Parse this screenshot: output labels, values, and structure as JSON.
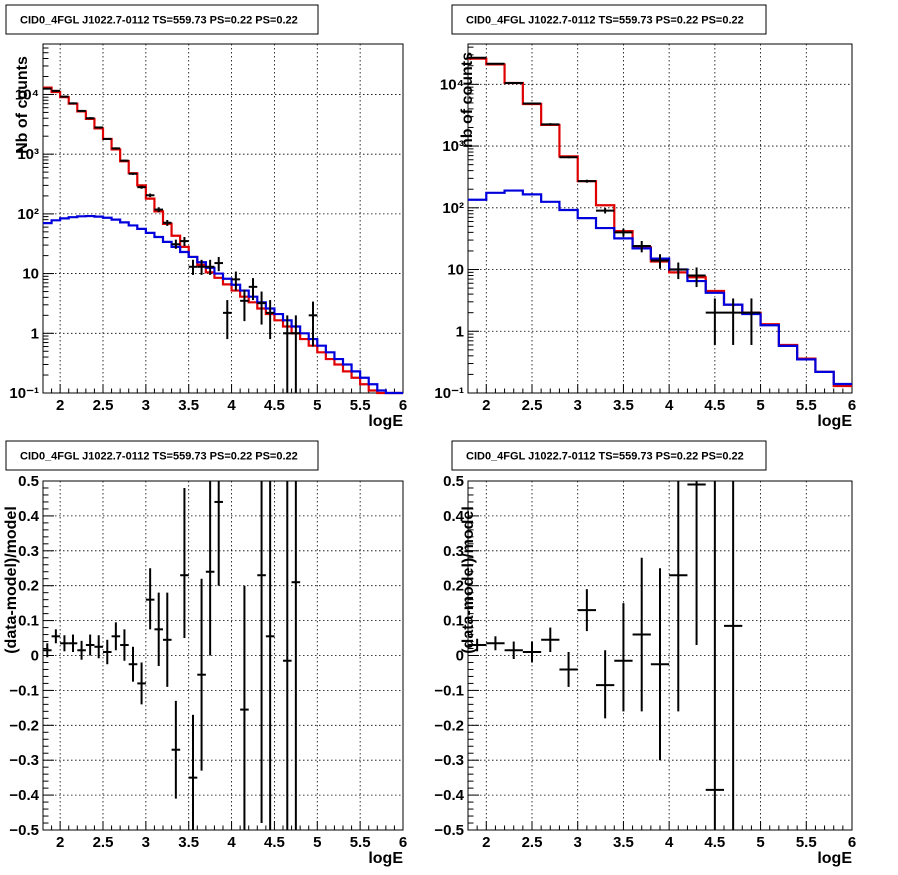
{
  "chart_data": [
    {
      "type": "line",
      "title": "CID0_4FGL J1022.7-0112 TS=559.73 PS=0.22 PS=0.22",
      "xlabel": "logE",
      "ylabel": "Nb of counts",
      "xlim": [
        1.8,
        6
      ],
      "ylim": [
        0.1,
        70000
      ],
      "yscale": "log",
      "grid": true,
      "x_ticks": [
        "2",
        "2.5",
        "3",
        "3.5",
        "4",
        "4.5",
        "5",
        "5.5",
        "6"
      ],
      "y_ticks": [
        "10⁻¹",
        "1",
        "10",
        "10²",
        "10³",
        "10⁴"
      ],
      "bin_edges": [
        1.8,
        1.9,
        2.0,
        2.1,
        2.2,
        2.3,
        2.4,
        2.5,
        2.6,
        2.7,
        2.8,
        2.9,
        3.0,
        3.1,
        3.2,
        3.3,
        3.4,
        3.5,
        3.6,
        3.7,
        3.8,
        3.9,
        4.0,
        4.1,
        4.2,
        4.3,
        4.4,
        4.5,
        4.6,
        4.7,
        4.8,
        4.9,
        5.0,
        5.1,
        5.2,
        5.3,
        5.4,
        5.5,
        5.6,
        5.7,
        5.8,
        5.9,
        6.0
      ],
      "series": [
        {
          "color": "#e00000",
          "values": [
            13000,
            11000,
            9000,
            7000,
            5200,
            3900,
            2700,
            1800,
            1200,
            760,
            480,
            300,
            180,
            110,
            68,
            43,
            28,
            19,
            14,
            10.5,
            8.5,
            6.6,
            5.2,
            4.1,
            3.3,
            2.6,
            2.1,
            1.65,
            1.3,
            1.0,
            0.8,
            0.62,
            0.48,
            0.37,
            0.3,
            0.23,
            0.18,
            0.14,
            0.11,
            0.09,
            0.08,
            0.07
          ]
        },
        {
          "color": "#0000dd",
          "values": [
            70,
            78,
            84,
            88,
            91,
            92,
            90,
            86,
            80,
            72,
            64,
            56,
            48,
            41,
            34,
            28,
            23,
            19,
            15.5,
            12.5,
            10,
            8.2,
            6.5,
            5.2,
            4.1,
            3.3,
            2.6,
            2.1,
            1.65,
            1.3,
            1.0,
            0.8,
            0.62,
            0.48,
            0.37,
            0.3,
            0.23,
            0.18,
            0.14,
            0.11,
            0.09,
            0.08
          ]
        }
      ],
      "points": [
        {
          "x": 1.85,
          "y": 12500,
          "lo": 12100,
          "hi": 12900
        },
        {
          "x": 1.95,
          "y": 11500,
          "lo": 11100,
          "hi": 11900
        },
        {
          "x": 2.05,
          "y": 9200,
          "lo": 8900,
          "hi": 9500
        },
        {
          "x": 2.15,
          "y": 7100,
          "lo": 6850,
          "hi": 7350
        },
        {
          "x": 2.25,
          "y": 5300,
          "lo": 5100,
          "hi": 5500
        },
        {
          "x": 2.35,
          "y": 4000,
          "lo": 3850,
          "hi": 4150
        },
        {
          "x": 2.45,
          "y": 2800,
          "lo": 2700,
          "hi": 2900
        },
        {
          "x": 2.55,
          "y": 1800,
          "lo": 1740,
          "hi": 1860
        },
        {
          "x": 2.65,
          "y": 1250,
          "lo": 1200,
          "hi": 1300
        },
        {
          "x": 2.75,
          "y": 780,
          "lo": 750,
          "hi": 810
        },
        {
          "x": 2.85,
          "y": 470,
          "lo": 450,
          "hi": 490
        },
        {
          "x": 2.95,
          "y": 280,
          "lo": 263,
          "hi": 297
        },
        {
          "x": 3.05,
          "y": 205,
          "lo": 191,
          "hi": 219
        },
        {
          "x": 3.15,
          "y": 118,
          "lo": 107,
          "hi": 129
        },
        {
          "x": 3.25,
          "y": 71,
          "lo": 63,
          "hi": 79
        },
        {
          "x": 3.35,
          "y": 31,
          "lo": 26,
          "hi": 37
        },
        {
          "x": 3.45,
          "y": 35,
          "lo": 29,
          "hi": 41
        },
        {
          "x": 3.55,
          "y": 13,
          "lo": 9.5,
          "hi": 17
        },
        {
          "x": 3.65,
          "y": 13,
          "lo": 9.5,
          "hi": 17
        },
        {
          "x": 3.75,
          "y": 13,
          "lo": 9.5,
          "hi": 17
        },
        {
          "x": 3.85,
          "y": 15,
          "lo": 11,
          "hi": 19
        },
        {
          "x": 3.95,
          "y": 2.2,
          "lo": 0.8,
          "hi": 3.6
        },
        {
          "x": 4.05,
          "y": 8,
          "lo": 5.2,
          "hi": 10.8
        },
        {
          "x": 4.15,
          "y": 3.5,
          "lo": 1.6,
          "hi": 5.4
        },
        {
          "x": 4.25,
          "y": 6,
          "lo": 3.6,
          "hi": 8.4
        },
        {
          "x": 4.35,
          "y": 3.2,
          "lo": 1.4,
          "hi": 5.0
        },
        {
          "x": 4.45,
          "y": 2.2,
          "lo": 0.8,
          "hi": 3.6
        },
        {
          "x": 4.65,
          "y": 1,
          "lo": 0.1,
          "hi": 2
        },
        {
          "x": 4.75,
          "y": 1,
          "lo": 0.1,
          "hi": 2
        },
        {
          "x": 4.95,
          "y": 2,
          "lo": 0.6,
          "hi": 3.4
        }
      ]
    },
    {
      "type": "line",
      "title": "CID0_4FGL J1022.7-0112 TS=559.73 PS=0.22 PS=0.22",
      "xlabel": "logE",
      "ylabel": "nb of counts",
      "xlim": [
        1.8,
        6
      ],
      "ylim": [
        0.1,
        45000
      ],
      "yscale": "log",
      "grid": true,
      "x_ticks": [
        "2",
        "2.5",
        "3",
        "3.5",
        "4",
        "4.5",
        "5",
        "5.5",
        "6"
      ],
      "y_ticks": [
        "10⁻¹",
        "1",
        "10",
        "10²",
        "10³",
        "10⁴"
      ],
      "bin_edges": [
        1.8,
        2.0,
        2.2,
        2.4,
        2.6,
        2.8,
        3.0,
        3.2,
        3.4,
        3.6,
        3.8,
        4.0,
        4.2,
        4.4,
        4.6,
        4.8,
        5.0,
        5.2,
        5.4,
        5.6,
        5.8,
        6.0
      ],
      "series": [
        {
          "color": "#e00000",
          "values": [
            26000,
            21000,
            10500,
            4800,
            2200,
            680,
            270,
            110,
            42,
            23,
            13.5,
            9,
            7.5,
            4.5,
            2.7,
            2.0,
            1.3,
            0.6,
            0.36,
            0.22,
            0.13
          ]
        },
        {
          "color": "#0000dd",
          "values": [
            135,
            175,
            190,
            165,
            125,
            92,
            68,
            47,
            32,
            22,
            15,
            10,
            6.5,
            4.2,
            2.7,
            1.9,
            1.25,
            0.58,
            0.35,
            0.22,
            0.14
          ]
        }
      ],
      "points": [
        {
          "x": 1.9,
          "y": 27000,
          "lo": 26500,
          "hi": 27500
        },
        {
          "x": 2.1,
          "y": 21500,
          "lo": 21100,
          "hi": 21900
        },
        {
          "x": 2.3,
          "y": 10500,
          "lo": 10200,
          "hi": 10800
        },
        {
          "x": 2.5,
          "y": 4900,
          "lo": 4750,
          "hi": 5050
        },
        {
          "x": 2.7,
          "y": 2250,
          "lo": 2150,
          "hi": 2350
        },
        {
          "x": 2.9,
          "y": 660,
          "lo": 635,
          "hi": 685
        },
        {
          "x": 3.1,
          "y": 270,
          "lo": 255,
          "hi": 285
        },
        {
          "x": 3.3,
          "y": 90,
          "lo": 81,
          "hi": 99
        },
        {
          "x": 3.5,
          "y": 40,
          "lo": 34,
          "hi": 46
        },
        {
          "x": 3.7,
          "y": 24,
          "lo": 19,
          "hi": 29
        },
        {
          "x": 3.9,
          "y": 14,
          "lo": 10.3,
          "hi": 17.7
        },
        {
          "x": 4.1,
          "y": 10,
          "lo": 7,
          "hi": 13
        },
        {
          "x": 4.3,
          "y": 8,
          "lo": 5.2,
          "hi": 10.8
        },
        {
          "x": 4.5,
          "y": 2,
          "lo": 0.6,
          "hi": 3.4
        },
        {
          "x": 4.7,
          "y": 2,
          "lo": 0.6,
          "hi": 3.4
        },
        {
          "x": 4.9,
          "y": 2,
          "lo": 0.6,
          "hi": 3.4
        }
      ]
    },
    {
      "type": "scatter",
      "title": "CID0_4FGL J1022.7-0112 TS=559.73 PS=0.22 PS=0.22",
      "xlabel": "logE",
      "ylabel": "(data-model)/model",
      "xlim": [
        1.8,
        6
      ],
      "ylim": [
        -0.5,
        0.5
      ],
      "grid": true,
      "x_ticks": [
        "2",
        "2.5",
        "3",
        "3.5",
        "4",
        "4.5",
        "5",
        "5.5",
        "6"
      ],
      "y_ticks": [
        "−0.5",
        "−0.4",
        "−0.3",
        "−0.2",
        "−0.1",
        "0",
        "0.1",
        "0.2",
        "0.3",
        "0.4",
        "0.5"
      ],
      "xerr": 0.05,
      "points": [
        {
          "x": 1.85,
          "y": 0.015,
          "lo": -0.005,
          "hi": 0.035
        },
        {
          "x": 1.95,
          "y": 0.055,
          "lo": 0.035,
          "hi": 0.075
        },
        {
          "x": 2.05,
          "y": 0.035,
          "lo": 0.012,
          "hi": 0.058
        },
        {
          "x": 2.15,
          "y": 0.035,
          "lo": 0.01,
          "hi": 0.06
        },
        {
          "x": 2.25,
          "y": 0.015,
          "lo": -0.012,
          "hi": 0.042
        },
        {
          "x": 2.35,
          "y": 0.03,
          "lo": 0.0,
          "hi": 0.06
        },
        {
          "x": 2.45,
          "y": 0.025,
          "lo": -0.008,
          "hi": 0.058
        },
        {
          "x": 2.55,
          "y": 0.01,
          "lo": -0.025,
          "hi": 0.045
        },
        {
          "x": 2.65,
          "y": 0.055,
          "lo": 0.015,
          "hi": 0.095
        },
        {
          "x": 2.75,
          "y": 0.03,
          "lo": -0.015,
          "hi": 0.075
        },
        {
          "x": 2.85,
          "y": -0.025,
          "lo": -0.075,
          "hi": 0.025
        },
        {
          "x": 2.95,
          "y": -0.08,
          "lo": -0.14,
          "hi": -0.02
        },
        {
          "x": 3.05,
          "y": 0.16,
          "lo": 0.075,
          "hi": 0.25
        },
        {
          "x": 3.15,
          "y": 0.075,
          "lo": -0.03,
          "hi": 0.18
        },
        {
          "x": 3.25,
          "y": 0.045,
          "lo": -0.09,
          "hi": 0.18
        },
        {
          "x": 3.35,
          "y": -0.27,
          "lo": -0.41,
          "hi": -0.13
        },
        {
          "x": 3.45,
          "y": 0.23,
          "lo": 0.05,
          "hi": 0.48
        },
        {
          "x": 3.55,
          "y": -0.35,
          "lo": -0.5,
          "hi": -0.17
        },
        {
          "x": 3.65,
          "y": -0.055,
          "lo": -0.33,
          "hi": 0.22
        },
        {
          "x": 3.75,
          "y": 0.24,
          "lo": 0.0,
          "hi": 0.5
        },
        {
          "x": 3.85,
          "y": 0.44,
          "lo": 0.2,
          "hi": 0.5
        },
        {
          "x": 4.15,
          "y": -0.155,
          "lo": -0.5,
          "hi": 0.2
        },
        {
          "x": 4.35,
          "y": 0.23,
          "lo": -0.48,
          "hi": 0.5
        },
        {
          "x": 4.45,
          "y": 0.055,
          "lo": -0.5,
          "hi": 0.5
        },
        {
          "x": 4.65,
          "y": -0.015,
          "lo": -0.5,
          "hi": 0.5
        },
        {
          "x": 4.75,
          "y": 0.21,
          "lo": -0.5,
          "hi": 0.5
        }
      ]
    },
    {
      "type": "scatter",
      "title": "CID0_4FGL J1022.7-0112 TS=559.73 PS=0.22 PS=0.22",
      "xlabel": "logE",
      "ylabel": "(data-model)/model",
      "xlim": [
        1.8,
        6
      ],
      "ylim": [
        -0.5,
        0.5
      ],
      "grid": true,
      "x_ticks": [
        "2",
        "2.5",
        "3",
        "3.5",
        "4",
        "4.5",
        "5",
        "5.5",
        "6"
      ],
      "y_ticks": [
        "−0.5",
        "−0.4",
        "−0.3",
        "−0.2",
        "−0.1",
        "0",
        "0.1",
        "0.2",
        "0.3",
        "0.4",
        "0.5"
      ],
      "xerr": 0.1,
      "points": [
        {
          "x": 1.9,
          "y": 0.03,
          "lo": 0.012,
          "hi": 0.048
        },
        {
          "x": 2.1,
          "y": 0.035,
          "lo": 0.015,
          "hi": 0.055
        },
        {
          "x": 2.3,
          "y": 0.015,
          "lo": -0.01,
          "hi": 0.04
        },
        {
          "x": 2.5,
          "y": 0.01,
          "lo": -0.02,
          "hi": 0.04
        },
        {
          "x": 2.7,
          "y": 0.045,
          "lo": 0.01,
          "hi": 0.08
        },
        {
          "x": 2.9,
          "y": -0.04,
          "lo": -0.09,
          "hi": 0.01
        },
        {
          "x": 3.1,
          "y": 0.13,
          "lo": 0.07,
          "hi": 0.19
        },
        {
          "x": 3.3,
          "y": -0.085,
          "lo": -0.18,
          "hi": 0.015
        },
        {
          "x": 3.5,
          "y": -0.015,
          "lo": -0.16,
          "hi": 0.15
        },
        {
          "x": 3.7,
          "y": 0.06,
          "lo": -0.16,
          "hi": 0.28
        },
        {
          "x": 3.9,
          "y": -0.025,
          "lo": -0.3,
          "hi": 0.25
        },
        {
          "x": 4.1,
          "y": 0.23,
          "lo": -0.16,
          "hi": 0.5
        },
        {
          "x": 4.3,
          "y": 0.49,
          "lo": 0.03,
          "hi": 0.5
        },
        {
          "x": 4.5,
          "y": -0.385,
          "lo": -0.5,
          "hi": 0.5
        },
        {
          "x": 4.7,
          "y": 0.085,
          "lo": -0.5,
          "hi": 0.5
        }
      ]
    }
  ]
}
